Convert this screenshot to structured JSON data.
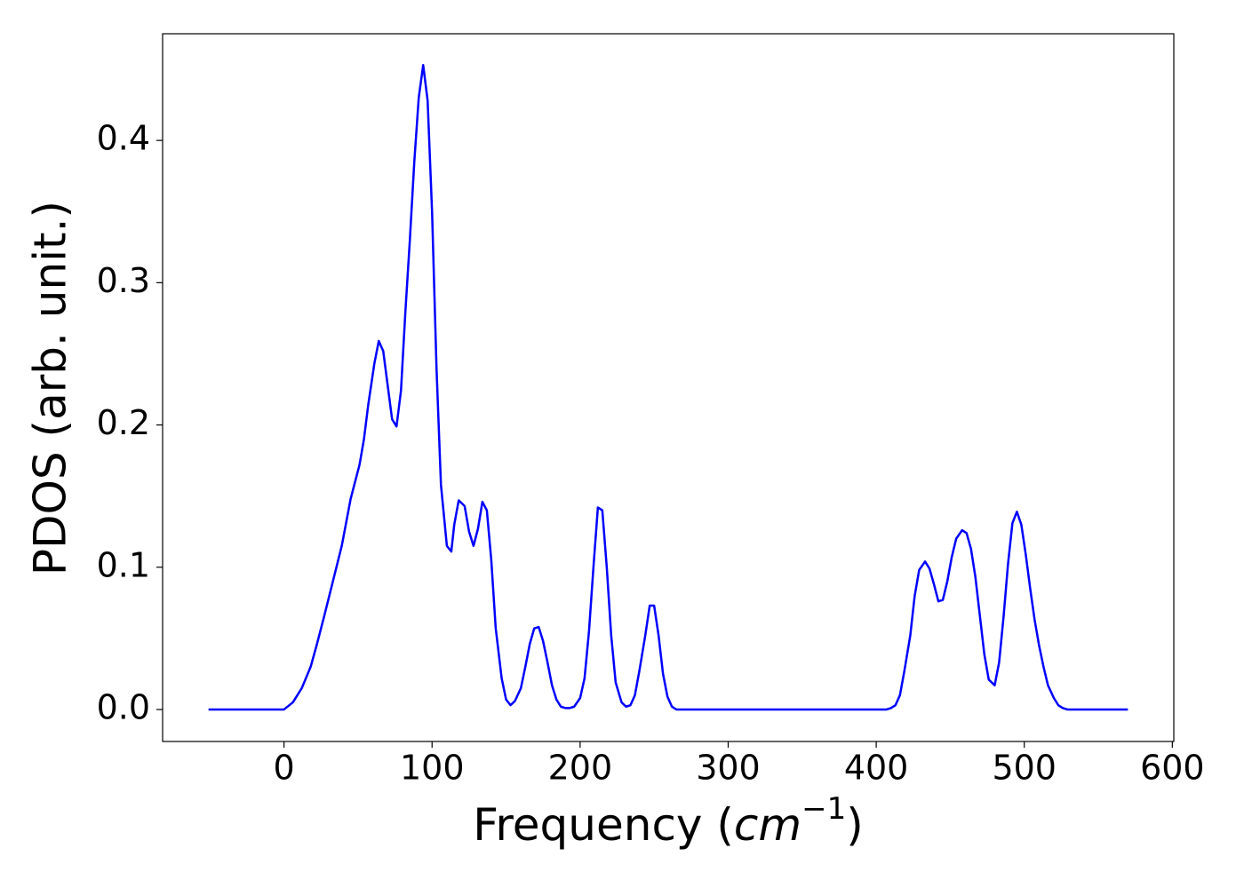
{
  "chart_data": {
    "type": "line",
    "x_label": [
      "Frequency (",
      "cm",
      "−1",
      ")"
    ],
    "y_label": "PDOS (arb. unit.)",
    "color": "#0000ff",
    "x": [
      -51,
      0,
      6,
      12,
      18,
      22,
      27,
      33,
      39,
      45,
      51,
      54,
      57,
      61,
      64,
      67,
      70,
      73,
      76,
      79,
      82,
      85,
      88,
      91,
      94,
      97,
      100,
      103,
      106,
      110,
      113,
      115,
      118,
      122,
      125,
      128,
      131,
      134,
      137,
      140,
      143,
      147,
      150,
      153,
      156,
      160,
      163,
      166,
      169,
      172,
      175,
      178,
      181,
      184,
      187,
      190,
      193,
      196,
      200,
      203,
      206,
      209,
      212,
      215,
      218,
      221,
      224,
      228,
      231,
      234,
      237,
      240,
      244,
      247,
      250,
      253,
      256,
      259,
      262,
      265,
      407,
      410,
      413,
      416,
      419,
      423,
      426,
      429,
      433,
      436,
      439,
      442,
      445,
      448,
      451,
      454,
      458,
      461,
      464,
      467,
      470,
      473,
      476,
      480,
      483,
      486,
      489,
      492,
      495,
      498,
      501,
      504,
      507,
      510,
      513,
      516,
      520,
      523,
      526,
      529,
      570
    ],
    "values": [
      0,
      0,
      0.005,
      0.015,
      0.03,
      0.045,
      0.065,
      0.09,
      0.115,
      0.148,
      0.172,
      0.19,
      0.215,
      0.243,
      0.259,
      0.252,
      0.228,
      0.204,
      0.199,
      0.224,
      0.28,
      0.33,
      0.385,
      0.43,
      0.453,
      0.428,
      0.35,
      0.24,
      0.158,
      0.115,
      0.111,
      0.13,
      0.147,
      0.143,
      0.125,
      0.115,
      0.127,
      0.146,
      0.14,
      0.105,
      0.057,
      0.022,
      0.007,
      0.003,
      0.006,
      0.015,
      0.03,
      0.046,
      0.057,
      0.058,
      0.048,
      0.033,
      0.017,
      0.007,
      0.002,
      0.001,
      0.001,
      0.002,
      0.008,
      0.022,
      0.055,
      0.1,
      0.142,
      0.14,
      0.1,
      0.052,
      0.019,
      0.005,
      0.002,
      0.003,
      0.01,
      0.027,
      0.052,
      0.073,
      0.073,
      0.052,
      0.025,
      0.009,
      0.002,
      0,
      0,
      0.001,
      0.003,
      0.01,
      0.027,
      0.052,
      0.08,
      0.098,
      0.104,
      0.099,
      0.088,
      0.076,
      0.077,
      0.09,
      0.107,
      0.12,
      0.126,
      0.124,
      0.113,
      0.093,
      0.066,
      0.039,
      0.021,
      0.017,
      0.033,
      0.065,
      0.102,
      0.131,
      0.139,
      0.13,
      0.109,
      0.085,
      0.063,
      0.045,
      0.03,
      0.017,
      0.008,
      0.003,
      0.001,
      0,
      0
    ],
    "xlim": [
      -82,
      601
    ],
    "ylim": [
      -0.0225,
      0.475
    ],
    "xticks": [
      0,
      100,
      200,
      300,
      400,
      500,
      600
    ],
    "yticks": [
      {
        "value": 0,
        "label": "0.0"
      },
      {
        "value": 0.1,
        "label": "0.1"
      },
      {
        "value": 0.2,
        "label": "0.2"
      },
      {
        "value": 0.3,
        "label": "0.3"
      },
      {
        "value": 0.4,
        "label": "0.4"
      }
    ]
  }
}
